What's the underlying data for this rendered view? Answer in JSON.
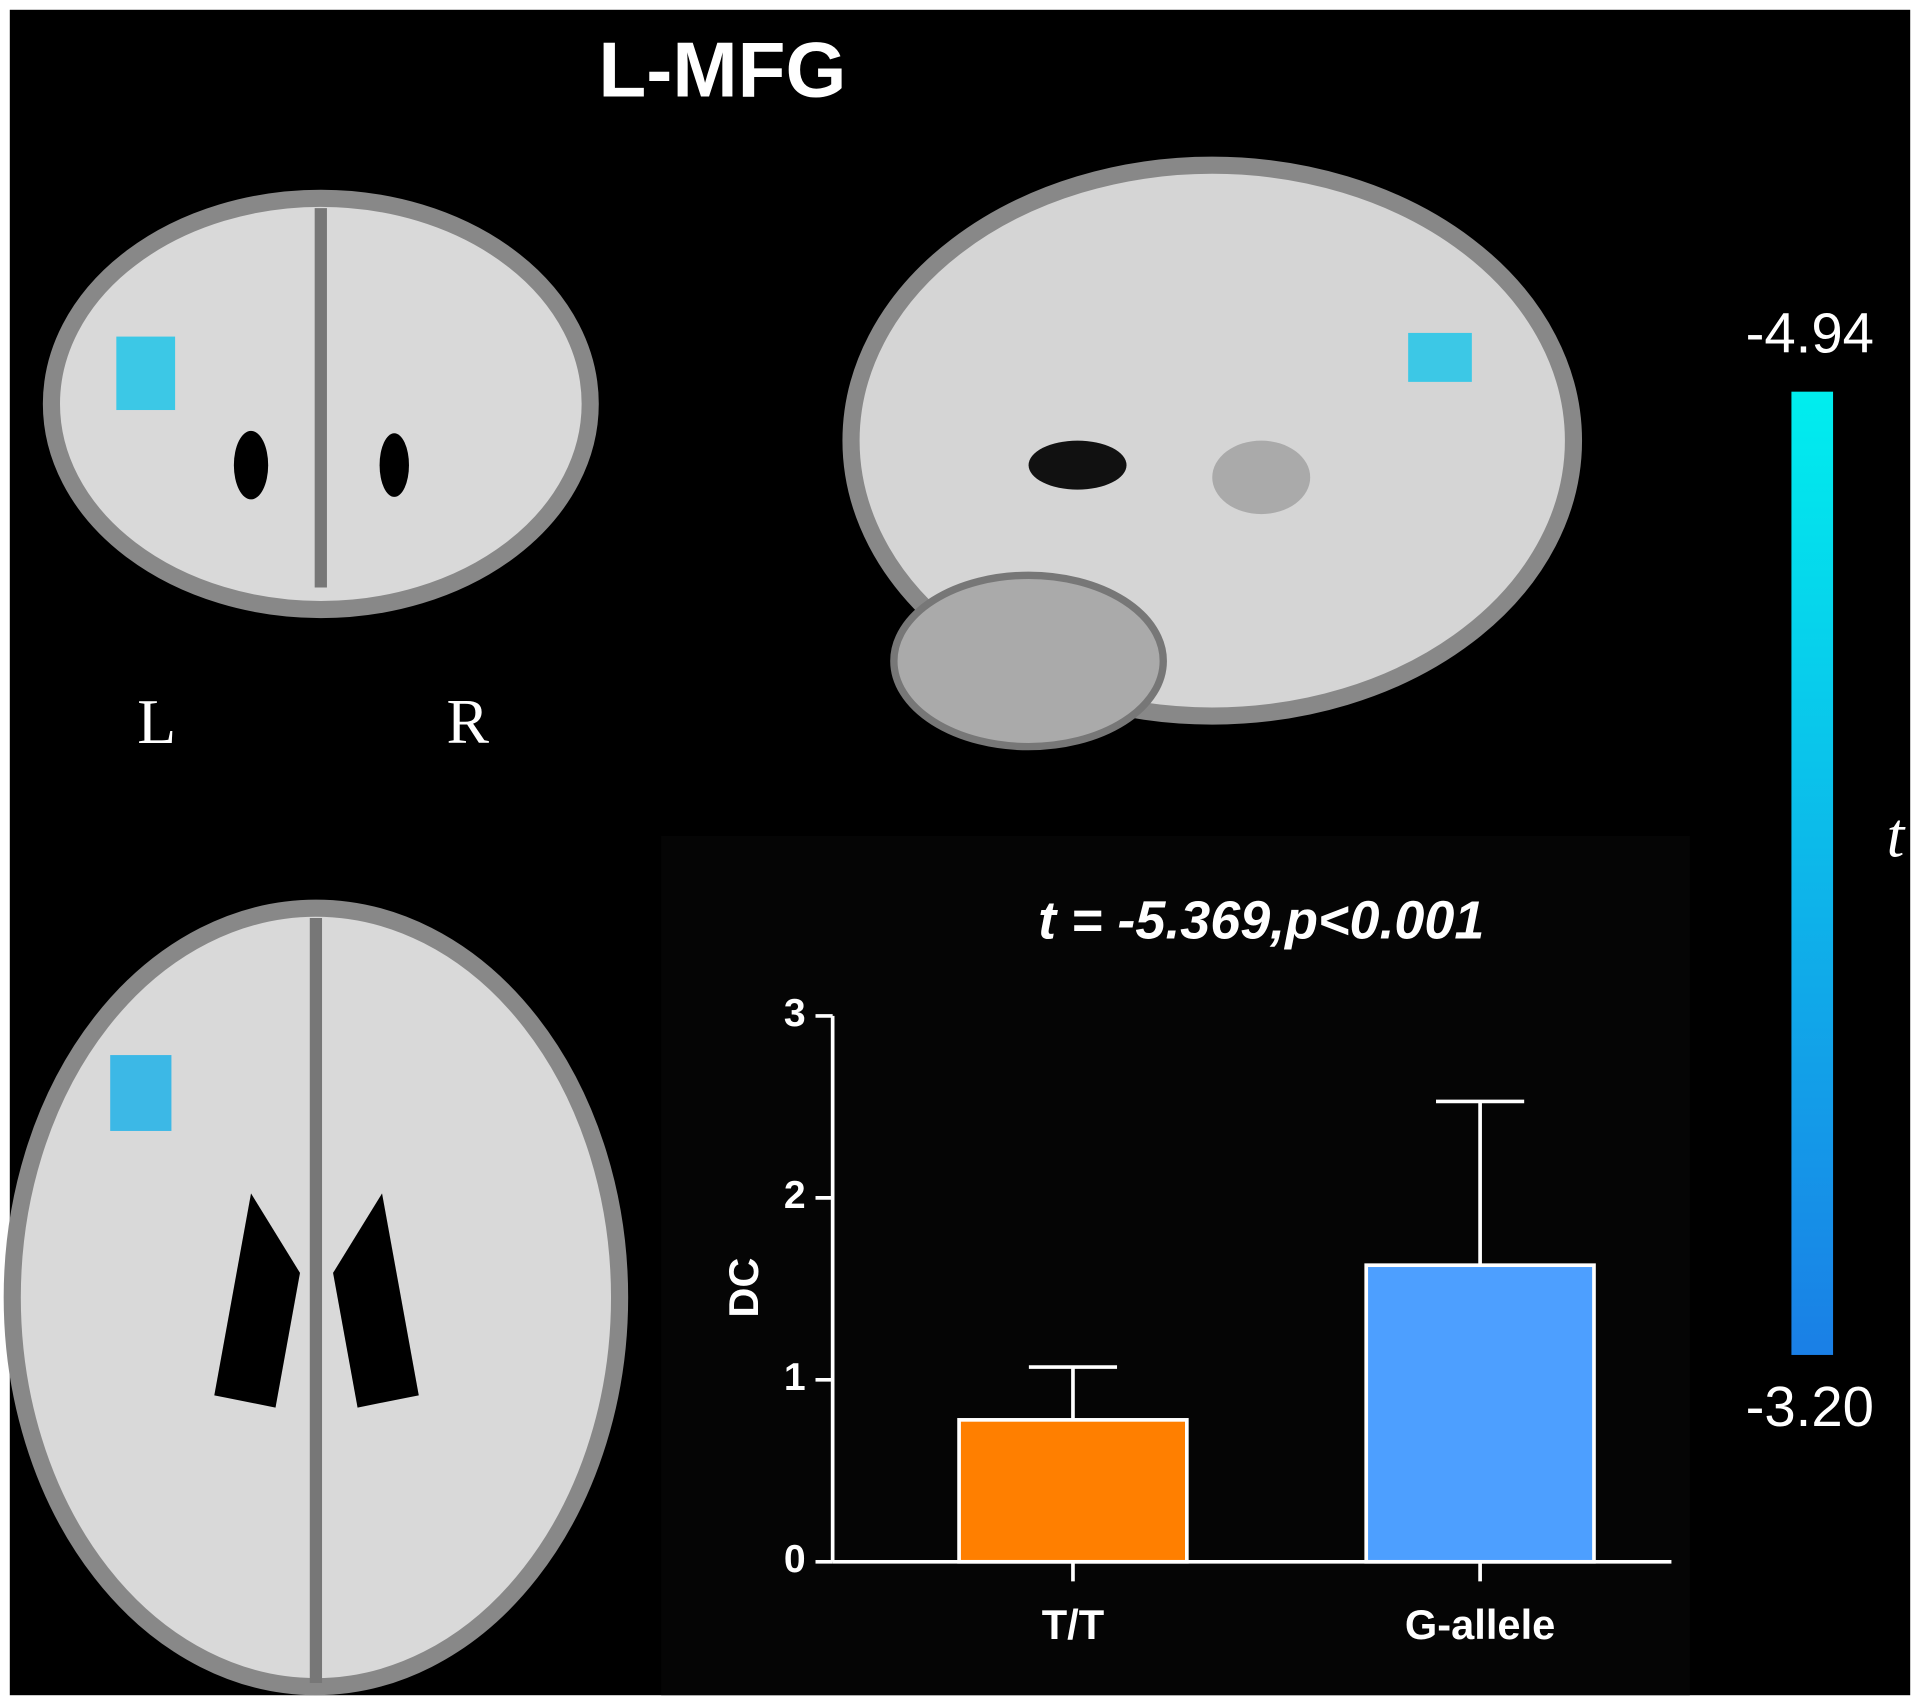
{
  "figure": {
    "title": "L-MFG",
    "left_label": "L",
    "right_label": "R"
  },
  "chart_data": {
    "type": "bar",
    "title": "t = -5.369,p<0.001",
    "ylabel": "DC",
    "categories": [
      "T/T",
      "G-allele"
    ],
    "values": [
      0.78,
      1.63
    ],
    "errors": [
      0.29,
      0.9
    ],
    "colors": [
      "#ff7f00",
      "#4d9fff"
    ],
    "ylim": [
      0,
      3
    ],
    "yticks": [
      0,
      1,
      2,
      3
    ],
    "colorbar": {
      "label": "t",
      "ticks": [
        {
          "value": -4.94,
          "label": "-4.94"
        },
        {
          "value": -3.2,
          "label": "-3.20"
        }
      ],
      "colors": [
        "#00eeee",
        "#1a7fe6"
      ]
    }
  }
}
